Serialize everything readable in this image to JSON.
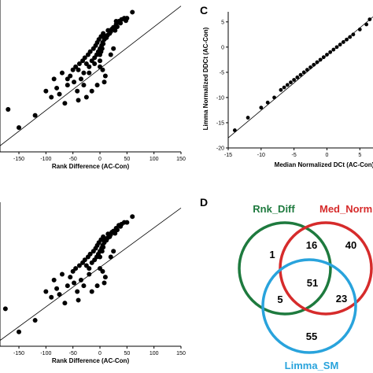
{
  "colors": {
    "rnk_diff": "#1e7a3e",
    "med_norm": "#d62b2b",
    "limma_sm": "#29a3dc",
    "points": "#000000"
  },
  "chart_data": [
    {
      "panel": "",
      "type": "scatter",
      "xlabel": "Rank Difference (AC-Con)",
      "ylabel": "",
      "xlim": [
        -185,
        150
      ],
      "ylim": [
        -140,
        110
      ],
      "xticks": [
        "-150",
        "-100",
        "-50",
        "0",
        "50",
        "100",
        "150"
      ],
      "regression_line": [
        [
          -185,
          -130
        ],
        [
          150,
          100
        ]
      ],
      "points": [
        [
          -170,
          -70
        ],
        [
          -150,
          -100
        ],
        [
          -120,
          -80
        ],
        [
          -100,
          -40
        ],
        [
          -90,
          -50
        ],
        [
          -85,
          -20
        ],
        [
          -80,
          -35
        ],
        [
          -75,
          -45
        ],
        [
          -70,
          -10
        ],
        [
          -65,
          -60
        ],
        [
          -60,
          -30
        ],
        [
          -55,
          -15
        ],
        [
          -50,
          -5
        ],
        [
          -48,
          -25
        ],
        [
          -45,
          0
        ],
        [
          -42,
          -40
        ],
        [
          -40,
          -55
        ],
        [
          -38,
          5
        ],
        [
          -35,
          -20
        ],
        [
          -32,
          10
        ],
        [
          -30,
          -30
        ],
        [
          -28,
          15
        ],
        [
          -25,
          5
        ],
        [
          -22,
          20
        ],
        [
          -20,
          -10
        ],
        [
          -18,
          25
        ],
        [
          -15,
          10
        ],
        [
          -12,
          30
        ],
        [
          -10,
          15
        ],
        [
          -8,
          35
        ],
        [
          -6,
          20
        ],
        [
          -5,
          40
        ],
        [
          -3,
          25
        ],
        [
          -2,
          45
        ],
        [
          0,
          30
        ],
        [
          2,
          50
        ],
        [
          3,
          35
        ],
        [
          5,
          40
        ],
        [
          6,
          55
        ],
        [
          8,
          45
        ],
        [
          10,
          50
        ],
        [
          12,
          48
        ],
        [
          14,
          52
        ],
        [
          15,
          60
        ],
        [
          18,
          55
        ],
        [
          20,
          58
        ],
        [
          22,
          62
        ],
        [
          25,
          65
        ],
        [
          28,
          60
        ],
        [
          30,
          70
        ],
        [
          32,
          66
        ],
        [
          35,
          75
        ],
        [
          38,
          72
        ],
        [
          40,
          78
        ],
        [
          -60,
          -20
        ],
        [
          -40,
          -5
        ],
        [
          -20,
          0
        ],
        [
          0,
          0
        ],
        [
          5,
          -5
        ],
        [
          10,
          -15
        ],
        [
          8,
          -25
        ],
        [
          -5,
          -30
        ],
        [
          -15,
          -40
        ],
        [
          -25,
          -50
        ],
        [
          20,
          20
        ],
        [
          25,
          30
        ],
        [
          0,
          10
        ],
        [
          0,
          20
        ],
        [
          2,
          25
        ],
        [
          4,
          30
        ],
        [
          6,
          38
        ],
        [
          30,
          75
        ],
        [
          45,
          80
        ],
        [
          48,
          76
        ],
        [
          50,
          80
        ],
        [
          60,
          90
        ],
        [
          -30,
          -10
        ],
        [
          -10,
          5
        ]
      ]
    },
    {
      "panel": "C",
      "type": "scatter",
      "xlabel": "Median Normalized DCt (AC-Con)",
      "ylabel": "Limma Normalized DDCt (AC-Con)",
      "xlim": [
        -15,
        7
      ],
      "ylim": [
        -20,
        7
      ],
      "xticks": [
        "-15",
        "-10",
        "-5",
        "0",
        "5"
      ],
      "yticks": [
        "-20",
        "-15",
        "-10",
        "-5",
        "0",
        "5"
      ],
      "regression_line": [
        [
          -15,
          -18
        ],
        [
          7,
          6
        ]
      ],
      "points": [
        [
          -14,
          -16.5
        ],
        [
          -12,
          -14
        ],
        [
          -10,
          -12
        ],
        [
          -9,
          -11
        ],
        [
          -8,
          -10
        ],
        [
          -7,
          -8.5
        ],
        [
          -6.5,
          -8
        ],
        [
          -6,
          -7.5
        ],
        [
          -5.5,
          -7
        ],
        [
          -5,
          -6.5
        ],
        [
          -4.5,
          -6
        ],
        [
          -4,
          -5.5
        ],
        [
          -3.5,
          -5
        ],
        [
          -3,
          -4.5
        ],
        [
          -2.5,
          -4
        ],
        [
          -2,
          -3.5
        ],
        [
          -1.5,
          -3
        ],
        [
          -1,
          -2.5
        ],
        [
          -0.5,
          -2
        ],
        [
          0,
          -1.5
        ],
        [
          0.5,
          -1
        ],
        [
          1,
          -0.5
        ],
        [
          1.5,
          0
        ],
        [
          2,
          0.5
        ],
        [
          2.5,
          1
        ],
        [
          3,
          1.5
        ],
        [
          3.5,
          2
        ],
        [
          4,
          2.5
        ],
        [
          5,
          3.5
        ],
        [
          6,
          4.5
        ],
        [
          6.5,
          5.5
        ]
      ]
    },
    {
      "panel": "",
      "type": "scatter",
      "xlabel": "Rank Difference (AC-Con)",
      "ylabel": "",
      "xlim": [
        -185,
        150
      ],
      "ylim": [
        -140,
        110
      ],
      "xticks": [
        "-150",
        "-100",
        "-50",
        "0",
        "50",
        "100",
        "150"
      ],
      "regression_line": [
        [
          -185,
          -130
        ],
        [
          150,
          100
        ]
      ],
      "points": [
        [
          -175,
          -75
        ],
        [
          -150,
          -115
        ],
        [
          -120,
          -95
        ],
        [
          -100,
          -45
        ],
        [
          -90,
          -55
        ],
        [
          -85,
          -25
        ],
        [
          -80,
          -40
        ],
        [
          -75,
          -50
        ],
        [
          -70,
          -15
        ],
        [
          -65,
          -65
        ],
        [
          -60,
          -35
        ],
        [
          -55,
          -20
        ],
        [
          -50,
          -10
        ],
        [
          -48,
          -30
        ],
        [
          -45,
          -5
        ],
        [
          -42,
          -45
        ],
        [
          -40,
          -60
        ],
        [
          -38,
          0
        ],
        [
          -35,
          -25
        ],
        [
          -32,
          5
        ],
        [
          -30,
          -35
        ],
        [
          -28,
          10
        ],
        [
          -25,
          0
        ],
        [
          -22,
          15
        ],
        [
          -20,
          -15
        ],
        [
          -18,
          20
        ],
        [
          -15,
          5
        ],
        [
          -12,
          25
        ],
        [
          -10,
          10
        ],
        [
          -8,
          30
        ],
        [
          -6,
          15
        ],
        [
          -5,
          35
        ],
        [
          -3,
          20
        ],
        [
          -2,
          40
        ],
        [
          0,
          25
        ],
        [
          2,
          45
        ],
        [
          3,
          30
        ],
        [
          5,
          35
        ],
        [
          6,
          50
        ],
        [
          8,
          40
        ],
        [
          10,
          45
        ],
        [
          12,
          44
        ],
        [
          14,
          48
        ],
        [
          15,
          55
        ],
        [
          18,
          50
        ],
        [
          20,
          54
        ],
        [
          22,
          58
        ],
        [
          25,
          60
        ],
        [
          28,
          56
        ],
        [
          30,
          65
        ],
        [
          32,
          62
        ],
        [
          35,
          70
        ],
        [
          38,
          68
        ],
        [
          40,
          72
        ],
        [
          -20,
          -5
        ],
        [
          0,
          -5
        ],
        [
          5,
          -10
        ],
        [
          10,
          -20
        ],
        [
          8,
          -30
        ],
        [
          -5,
          -35
        ],
        [
          -15,
          -45
        ],
        [
          20,
          15
        ],
        [
          25,
          25
        ],
        [
          0,
          15
        ],
        [
          4,
          25
        ],
        [
          6,
          32
        ],
        [
          45,
          75
        ],
        [
          50,
          75
        ],
        [
          60,
          85
        ]
      ]
    }
  ],
  "venn": {
    "panel": "D",
    "labels": {
      "rnk_diff": "Rnk_Diff",
      "med_norm": "Med_Norm",
      "limma_sm": "Limma_SM"
    },
    "regions": {
      "rnk_only": "1",
      "rnk_med": "16",
      "med_only": "40",
      "all_three": "51",
      "rnk_limma": "5",
      "med_limma": "23",
      "limma_only": "55"
    }
  }
}
